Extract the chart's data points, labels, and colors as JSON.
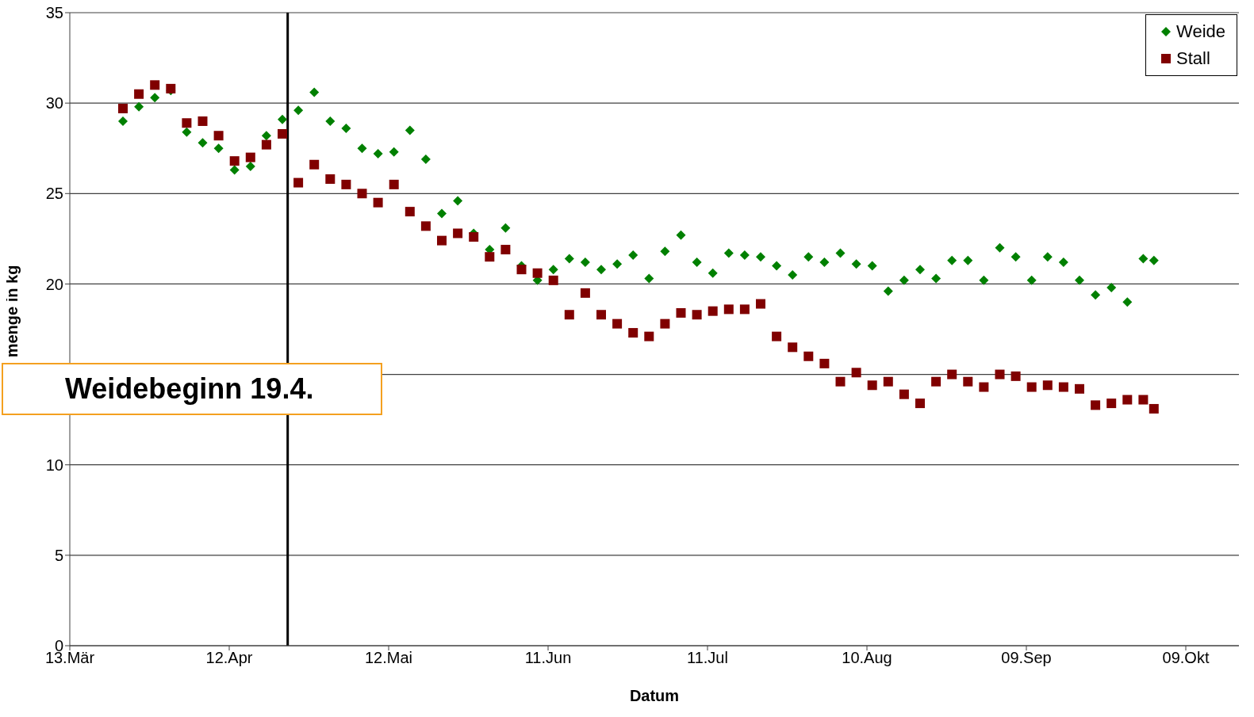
{
  "chart_data": {
    "type": "scatter",
    "xlabel": "Datum",
    "ylabel": "menge in kg",
    "x": [
      "--03-23",
      "--03-26",
      "--03-29",
      "--04-01",
      "--04-04",
      "--04-07",
      "--04-10",
      "--04-13",
      "--04-16",
      "--04-19",
      "--04-22",
      "--04-25",
      "--04-28",
      "--05-01",
      "--05-04",
      "--05-07",
      "--05-10",
      "--05-13",
      "--05-16",
      "--05-19",
      "--05-22",
      "--05-25",
      "--05-28",
      "--05-31",
      "--06-03",
      "--06-06",
      "--06-09",
      "--06-12",
      "--06-15",
      "--06-18",
      "--06-21",
      "--06-24",
      "--06-27",
      "--06-30",
      "--07-03",
      "--07-06",
      "--07-09",
      "--07-12",
      "--07-15",
      "--07-18",
      "--07-21",
      "--07-24",
      "--07-27",
      "--07-30",
      "--08-02",
      "--08-05",
      "--08-08",
      "--08-11",
      "--08-14",
      "--08-17",
      "--08-20",
      "--08-23",
      "--08-26",
      "--08-29",
      "--09-01",
      "--09-04",
      "--09-07",
      "--09-10",
      "--09-13",
      "--09-16",
      "--09-19",
      "--09-22",
      "--09-25",
      "--09-28",
      "--10-01",
      "--10-03"
    ],
    "series": [
      {
        "name": "Weide",
        "color": "#008000",
        "marker": "diamond",
        "values": [
          29.0,
          29.8,
          30.3,
          30.7,
          28.4,
          27.8,
          27.5,
          26.3,
          26.5,
          28.2,
          29.1,
          29.6,
          30.6,
          29.0,
          28.6,
          27.5,
          27.2,
          27.3,
          28.5,
          26.9,
          23.9,
          24.6,
          22.8,
          21.9,
          23.1,
          21.0,
          20.2,
          20.8,
          21.4,
          21.2,
          20.8,
          21.1,
          21.6,
          20.3,
          21.8,
          22.7,
          21.2,
          20.6,
          21.7,
          21.6,
          21.5,
          21.0,
          20.5,
          21.5,
          21.2,
          21.7,
          21.1,
          21.0,
          19.6,
          20.2,
          20.8,
          20.3,
          21.3,
          21.3,
          20.2,
          22.0,
          21.5,
          20.2,
          21.5,
          21.2,
          20.2,
          19.4,
          19.8,
          19.0,
          21.4,
          21.3
        ]
      },
      {
        "name": "Stall",
        "color": "#800000",
        "marker": "square",
        "values": [
          29.7,
          30.5,
          31.0,
          30.8,
          28.9,
          29.0,
          28.2,
          26.8,
          27.0,
          27.7,
          28.3,
          25.6,
          26.6,
          25.8,
          25.5,
          25.0,
          24.5,
          25.5,
          24.0,
          23.2,
          22.4,
          22.8,
          22.6,
          21.5,
          21.9,
          20.8,
          20.6,
          20.2,
          18.3,
          19.5,
          18.3,
          17.8,
          17.3,
          17.1,
          17.8,
          18.4,
          18.3,
          18.5,
          18.6,
          18.6,
          18.9,
          17.1,
          16.5,
          16.0,
          15.6,
          14.6,
          15.1,
          14.4,
          14.6,
          13.9,
          13.4,
          14.6,
          15.0,
          14.6,
          14.3,
          15.0,
          14.9,
          14.3,
          14.4,
          14.3,
          14.2,
          13.3,
          13.4,
          13.6,
          13.6,
          13.1
        ]
      }
    ],
    "xlim": [
      "--03-13",
      "--10-19"
    ],
    "xticks": [
      {
        "value": "--03-13",
        "label": "13.Mär"
      },
      {
        "value": "--04-12",
        "label": "12.Apr"
      },
      {
        "value": "--05-12",
        "label": "12.Mai"
      },
      {
        "value": "--06-11",
        "label": "11.Jun"
      },
      {
        "value": "--07-11",
        "label": "11.Jul"
      },
      {
        "value": "--08-10",
        "label": "10.Aug"
      },
      {
        "value": "--09-09",
        "label": "09.Sep"
      },
      {
        "value": "--10-09",
        "label": "09.Okt"
      }
    ],
    "ylim": [
      0,
      35
    ],
    "yticks": [
      0,
      5,
      10,
      {
        "value": 15,
        "label": null
      },
      20,
      25,
      30,
      35
    ],
    "grid": "y",
    "legend": "top right",
    "ref_lines": [
      {
        "axis": "x",
        "value": "--04-23",
        "label": "Weidebeginn 19.4.",
        "color": "#000000"
      }
    ]
  }
}
